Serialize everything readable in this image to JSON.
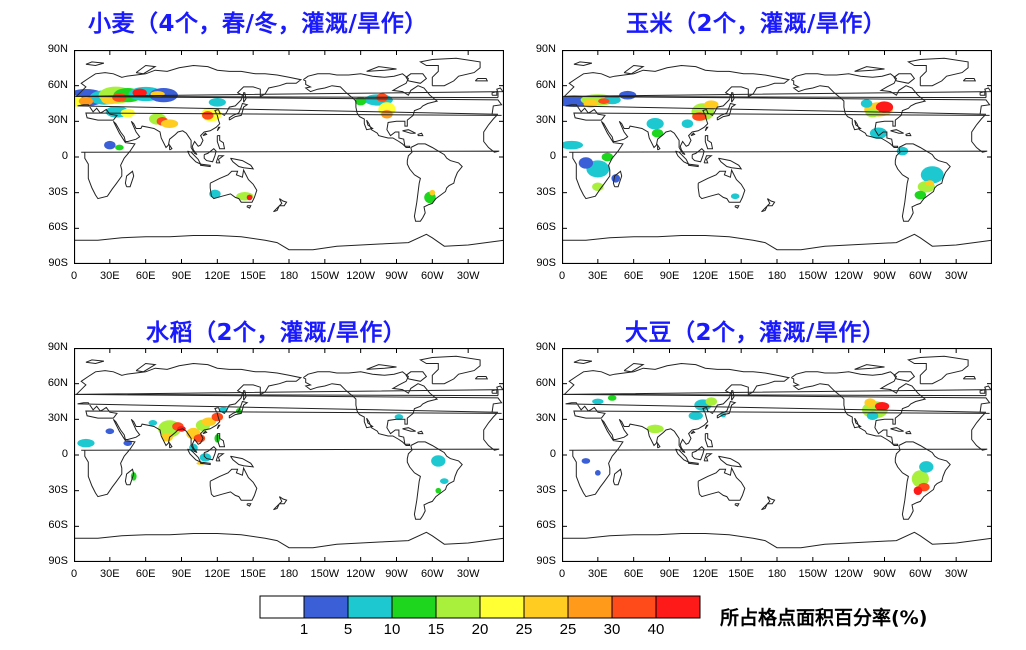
{
  "panels": [
    {
      "id": "wheat",
      "title": "小麦（4个，春/冬，灌溉/旱作）"
    },
    {
      "id": "maize",
      "title": "玉米（2个，灌溉/旱作）"
    },
    {
      "id": "rice",
      "title": "水稻（2个，灌溉/旱作）"
    },
    {
      "id": "soybean",
      "title": "大豆（2个，灌溉/旱作）"
    }
  ],
  "axes": {
    "lat_labels": [
      "90N",
      "60N",
      "30N",
      "0",
      "30S",
      "60S",
      "90S"
    ],
    "lon_labels": [
      "0",
      "30E",
      "60E",
      "90E",
      "120E",
      "150E",
      "180",
      "150W",
      "120W",
      "90W",
      "60W",
      "30W"
    ]
  },
  "legend": {
    "title": "所占格点面积百分率(%)",
    "labels": [
      "1",
      "5",
      "10",
      "15",
      "20",
      "25",
      "25",
      "30",
      "40"
    ],
    "colors": [
      "#ffffff",
      "#3b5fd6",
      "#1ec8d0",
      "#1ed61e",
      "#a8f03c",
      "#ffff33",
      "#ffcc22",
      "#ff9a1a",
      "#ff4a1a",
      "#ff1a1a"
    ]
  }
}
